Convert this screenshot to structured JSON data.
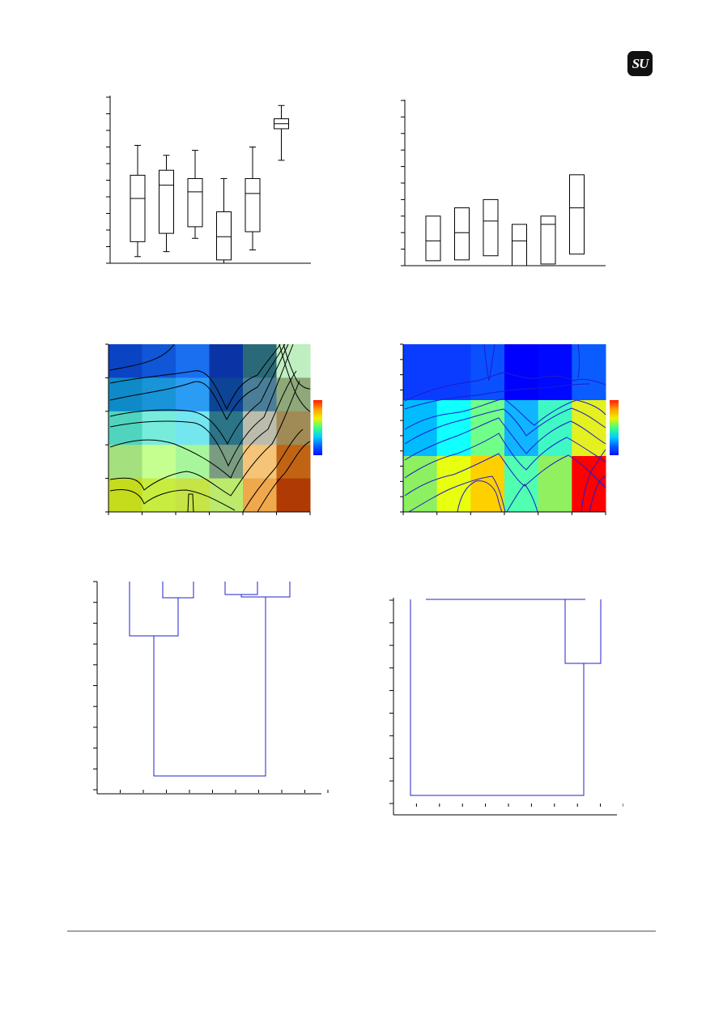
{
  "logo": {
    "text": "SU"
  },
  "colors": {
    "axis": "#000000",
    "dendrogram": "#2222cc",
    "contour_left": "#000000",
    "contour_right": "#1d1dcc"
  },
  "charts": {
    "boxplot_left": {
      "type": "box",
      "ylim": [
        0,
        10
      ],
      "yticks": 11,
      "boxes": [
        {
          "whisker_low": 0.4,
          "q1": 1.3,
          "median": 3.9,
          "q3": 5.3,
          "whisker_high": 7.1
        },
        {
          "whisker_low": 0.7,
          "q1": 1.8,
          "median": 4.7,
          "q3": 5.6,
          "whisker_high": 6.5
        },
        {
          "whisker_low": 1.5,
          "q1": 2.2,
          "median": 4.3,
          "q3": 5.1,
          "whisker_high": 6.8
        },
        {
          "whisker_low": 0.0,
          "q1": 0.2,
          "median": 1.6,
          "q3": 3.1,
          "whisker_high": 5.1
        },
        {
          "whisker_low": 0.8,
          "q1": 1.9,
          "median": 4.2,
          "q3": 5.1,
          "whisker_high": 7.0
        },
        {
          "whisker_low": 6.2,
          "q1": 8.1,
          "median": 8.4,
          "q3": 8.7,
          "whisker_high": 9.5
        }
      ]
    },
    "boxplot_right": {
      "type": "box",
      "ylim": [
        0,
        10
      ],
      "yticks": 11,
      "boxes": [
        {
          "q1": 0.3,
          "median": 1.5,
          "q3": 3.0
        },
        {
          "q1": 0.35,
          "median": 2.0,
          "q3": 3.5
        },
        {
          "q1": 0.6,
          "median": 2.7,
          "q3": 4.0
        },
        {
          "q1": 0.0,
          "median": 1.5,
          "q3": 2.5
        },
        {
          "q1": 0.1,
          "median": 2.5,
          "q3": 3.0
        },
        {
          "q1": 0.7,
          "median": 3.5,
          "q3": 5.5
        }
      ]
    },
    "heatmap_left": {
      "type": "heatmap",
      "rows": 5,
      "cols": 6,
      "cells": [
        [
          "#0a44c4",
          "#1056d6",
          "#1a6ff0",
          "#0a34a6",
          "#2a6a78",
          "#bfeec0"
        ],
        [
          "#0e8ac8",
          "#1a94d8",
          "#2a9cf4",
          "#0c4496",
          "#4a7e98",
          "#8ea87a"
        ],
        [
          "#50d4c0",
          "#78ecdc",
          "#74e6f0",
          "#2c7488",
          "#bcbcac",
          "#a08a56"
        ],
        [
          "#a4e07e",
          "#c4ff90",
          "#a8f69c",
          "#7a9c80",
          "#f6c478",
          "#c06414"
        ],
        [
          "#c4dc1c",
          "#c8ec40",
          "#c6e446",
          "#bcea6c",
          "#f0a84c",
          "#b03a04"
        ]
      ],
      "colorbar": [
        "#ff1a00",
        "#ffa000",
        "#f0f000",
        "#40ff80",
        "#00d0ff",
        "#0060ff",
        "#0010ff"
      ]
    },
    "heatmap_right": {
      "type": "heatmap",
      "rows": 3,
      "cols": 6,
      "cells": [
        [
          "#0a3cff",
          "#0a3cff",
          "#0a50ff",
          "#0000ff",
          "#0008ff",
          "#0a5cff"
        ],
        [
          "#00bcff",
          "#10ffff",
          "#70ff88",
          "#10b4ff",
          "#40f8c4",
          "#e4f020"
        ],
        [
          "#8cf060",
          "#e8ff10",
          "#ffd000",
          "#50ffb0",
          "#90f060",
          "#ff0000"
        ]
      ],
      "colorbar": [
        "#ff1a00",
        "#ffa000",
        "#f0f000",
        "#40ff80",
        "#00d0ff",
        "#0060ff",
        "#0010ff"
      ]
    },
    "dendrogram_left": {
      "type": "dendrogram",
      "xticks": 10,
      "yticks": 10
    },
    "dendrogram_right": {
      "type": "dendrogram",
      "xticks": 10,
      "yticks": 9
    }
  }
}
